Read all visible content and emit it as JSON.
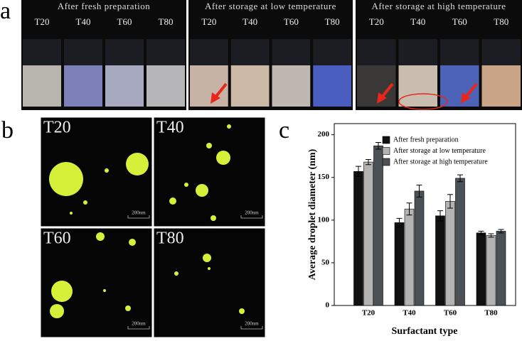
{
  "panel_labels": [
    "a",
    "b",
    "c"
  ],
  "photos": [
    {
      "title": "After fresh preparation",
      "tubes": [
        "T20",
        "T40",
        "T60",
        "T80"
      ]
    },
    {
      "title": "After storage at low temperature",
      "tubes": [
        "T20",
        "T40",
        "T60",
        "T80"
      ]
    },
    {
      "title": "After storage at high temperature",
      "tubes": [
        "T20",
        "T40",
        "T60",
        "T80"
      ]
    }
  ],
  "micrographs": [
    {
      "label": "T20",
      "scale": "200nm"
    },
    {
      "label": "T40",
      "scale": "200nm"
    },
    {
      "label": "T60",
      "scale": "200nm"
    },
    {
      "label": "T80",
      "scale": "200nm"
    }
  ],
  "chart_data": {
    "type": "bar",
    "x_label": "Surfactant type",
    "y_label": "Average droplet diameter (nm)",
    "categories": [
      "T20",
      "T40",
      "T60",
      "T80"
    ],
    "series": [
      {
        "name": "After fresh preparation",
        "color": "#111111",
        "values": [
          157,
          97,
          105,
          85
        ],
        "errors": [
          6,
          5,
          6,
          2
        ]
      },
      {
        "name": "After storage at low temperature",
        "color": "#b3b3b3",
        "values": [
          168,
          113,
          122,
          82
        ],
        "errors": [
          3,
          7,
          8,
          2
        ]
      },
      {
        "name": "After storage at high temperature",
        "color": "#4b5154",
        "values": [
          187,
          134,
          149,
          87
        ],
        "errors": [
          4,
          7,
          4,
          2
        ]
      }
    ],
    "ylim": [
      0,
      213
    ],
    "yticks": [
      0,
      50,
      100,
      150,
      200
    ],
    "legend": "upper-right"
  }
}
